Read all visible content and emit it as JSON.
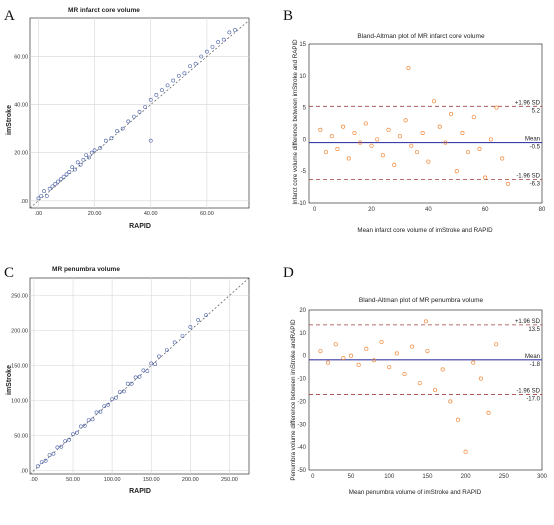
{
  "figure": {
    "panels": [
      {
        "letter": "A",
        "title": "MR infarct core volume",
        "xlabel": "RAPID",
        "ylabel": "imStroke"
      },
      {
        "letter": "B",
        "title": "Bland-Altman plot of MR infarct core volume",
        "xlabel": "Mean infarct core volume of imStroke and RAPID",
        "ylabel": "Infarct core volume difference between imStroke and RAPID"
      },
      {
        "letter": "C",
        "title": "MR penumbra volume",
        "xlabel": "RAPID",
        "ylabel": "imStroke"
      },
      {
        "letter": "D",
        "title": "Bland-Altman plot of MR penumbra volume",
        "xlabel": "Mean penumbra volume of imStroke and RAPID",
        "ylabel": "Penumbra volume difference between imStroke andRAPID"
      }
    ]
  },
  "colors": {
    "scatter_point": "#4a5fa8",
    "ba_point": "#f08a3c",
    "mean_line": "#3c3ca8",
    "limit_line": "#a04040",
    "grid": "#d6d6d6"
  },
  "chart_data": [
    {
      "type": "scatter",
      "title": "MR infarct core volume",
      "xlabel": "RAPID",
      "ylabel": "imStroke",
      "xlim": [
        -3,
        75
      ],
      "ylim": [
        -3,
        76
      ],
      "x_ticks": [
        ".00",
        "20.00",
        "40.00",
        "60.00"
      ],
      "y_ticks": [
        ".00",
        "20.00",
        "40.00",
        "60.00"
      ],
      "grid": true,
      "identity_line": true,
      "series": [
        {
          "points": [
            [
              0,
              1
            ],
            [
              1,
              2
            ],
            [
              2,
              4
            ],
            [
              3,
              2
            ],
            [
              4,
              5
            ],
            [
              5,
              6
            ],
            [
              6,
              7
            ],
            [
              7,
              8
            ],
            [
              8,
              9
            ],
            [
              9,
              10
            ],
            [
              10,
              11
            ],
            [
              11,
              12
            ],
            [
              12,
              14
            ],
            [
              13,
              13
            ],
            [
              14,
              16
            ],
            [
              15,
              15
            ],
            [
              16,
              17
            ],
            [
              17,
              19
            ],
            [
              18,
              18
            ],
            [
              19,
              20
            ],
            [
              20,
              21
            ],
            [
              22,
              22
            ],
            [
              24,
              25
            ],
            [
              26,
              26
            ],
            [
              28,
              29
            ],
            [
              30,
              30
            ],
            [
              32,
              33
            ],
            [
              34,
              35
            ],
            [
              36,
              37
            ],
            [
              38,
              39
            ],
            [
              40,
              25
            ],
            [
              40,
              42
            ],
            [
              42,
              44
            ],
            [
              44,
              46
            ],
            [
              46,
              48
            ],
            [
              48,
              50
            ],
            [
              50,
              52
            ],
            [
              52,
              53
            ],
            [
              54,
              56
            ],
            [
              56,
              57
            ],
            [
              58,
              60
            ],
            [
              60,
              62
            ],
            [
              62,
              64
            ],
            [
              64,
              66
            ],
            [
              66,
              67
            ],
            [
              68,
              70
            ],
            [
              70,
              71
            ]
          ]
        }
      ]
    },
    {
      "type": "scatter",
      "title": "Bland-Altman plot of MR infarct core volume",
      "xlabel": "Mean infarct core volume of imStroke and RAPID",
      "ylabel": "Infarct core volume difference between imStroke and RAPID",
      "xlim": [
        -2,
        80
      ],
      "ylim": [
        -10,
        15
      ],
      "x_ticks": [
        0,
        20,
        40,
        60,
        80
      ],
      "y_ticks": [
        -10,
        -5,
        0,
        5,
        10,
        15
      ],
      "mean": -0.5,
      "upper_loa": 5.2,
      "lower_loa": -6.3,
      "mean_label": "Mean",
      "upper_label": "+1.96 SD",
      "lower_label": "-1.96 SD",
      "mean_value_label": "-0.5",
      "upper_value_label": "5.2",
      "lower_value_label": "-6.3",
      "series": [
        {
          "points": [
            [
              2,
              1.5
            ],
            [
              4,
              -2
            ],
            [
              6,
              0.5
            ],
            [
              8,
              -1.5
            ],
            [
              10,
              2
            ],
            [
              12,
              -3
            ],
            [
              14,
              1
            ],
            [
              16,
              -0.5
            ],
            [
              18,
              2.5
            ],
            [
              20,
              -1
            ],
            [
              22,
              0
            ],
            [
              24,
              -2.5
            ],
            [
              26,
              1.5
            ],
            [
              28,
              -4
            ],
            [
              30,
              0.5
            ],
            [
              32,
              3
            ],
            [
              34,
              -1
            ],
            [
              36,
              -2
            ],
            [
              38,
              1
            ],
            [
              40,
              -3.5
            ],
            [
              42,
              6
            ],
            [
              44,
              2
            ],
            [
              46,
              -0.5
            ],
            [
              48,
              4
            ],
            [
              50,
              -5
            ],
            [
              52,
              1
            ],
            [
              54,
              -2
            ],
            [
              56,
              3.5
            ],
            [
              58,
              -1.5
            ],
            [
              60,
              -6
            ],
            [
              62,
              0
            ],
            [
              64,
              5
            ],
            [
              66,
              -3
            ],
            [
              68,
              -7
            ],
            [
              33,
              11.2
            ]
          ]
        }
      ]
    },
    {
      "type": "scatter",
      "title": "MR penumbra volume",
      "xlabel": "RAPID",
      "ylabel": "imStroke",
      "xlim": [
        -5,
        275
      ],
      "ylim": [
        -5,
        275
      ],
      "x_ticks": [
        ".00",
        "50.00",
        "100.00",
        "150.00",
        "200.00",
        "250.00"
      ],
      "y_ticks": [
        ".00",
        "50.00",
        "100.00",
        "150.00",
        "200.00",
        "250.00"
      ],
      "grid": true,
      "identity_line": true,
      "series": [
        {
          "points": [
            [
              5,
              6
            ],
            [
              10,
              12
            ],
            [
              15,
              14
            ],
            [
              20,
              22
            ],
            [
              25,
              24
            ],
            [
              30,
              33
            ],
            [
              35,
              34
            ],
            [
              40,
              42
            ],
            [
              45,
              44
            ],
            [
              50,
              52
            ],
            [
              55,
              54
            ],
            [
              60,
              63
            ],
            [
              65,
              64
            ],
            [
              70,
              72
            ],
            [
              75,
              73
            ],
            [
              80,
              83
            ],
            [
              85,
              84
            ],
            [
              90,
              92
            ],
            [
              95,
              94
            ],
            [
              100,
              102
            ],
            [
              105,
              104
            ],
            [
              110,
              112
            ],
            [
              115,
              113
            ],
            [
              120,
              124
            ],
            [
              125,
              124
            ],
            [
              130,
              133
            ],
            [
              135,
              134
            ],
            [
              140,
              143
            ],
            [
              145,
              142
            ],
            [
              150,
              153
            ],
            [
              155,
              152
            ],
            [
              160,
              163
            ],
            [
              170,
              172
            ],
            [
              180,
              183
            ],
            [
              190,
              192
            ],
            [
              200,
              205
            ],
            [
              210,
              215
            ],
            [
              220,
              222
            ]
          ]
        }
      ]
    },
    {
      "type": "scatter",
      "title": "Bland-Altman plot of MR penumbra volume",
      "xlabel": "Mean penumbra volume of imStroke and RAPID",
      "ylabel": "Penumbra volume difference between imStroke andRAPID",
      "xlim": [
        -5,
        300
      ],
      "ylim": [
        -50,
        20
      ],
      "x_ticks": [
        0,
        50,
        100,
        150,
        200,
        250,
        300
      ],
      "y_ticks": [
        -50,
        -40,
        -30,
        -20,
        -10,
        0,
        10,
        20
      ],
      "mean": -1.8,
      "upper_loa": 13.5,
      "lower_loa": -17.0,
      "mean_label": "Mean",
      "upper_label": "+1.96 SD",
      "lower_label": "-1.96 SD",
      "mean_value_label": "-1.8",
      "upper_value_label": "13.5",
      "lower_value_label": "-17.0",
      "series": [
        {
          "points": [
            [
              10,
              2
            ],
            [
              20,
              -3
            ],
            [
              30,
              5
            ],
            [
              40,
              -1
            ],
            [
              50,
              0
            ],
            [
              60,
              -4
            ],
            [
              70,
              3
            ],
            [
              80,
              -2
            ],
            [
              90,
              6
            ],
            [
              100,
              -5
            ],
            [
              110,
              1
            ],
            [
              120,
              -8
            ],
            [
              130,
              4
            ],
            [
              140,
              -12
            ],
            [
              150,
              2
            ],
            [
              160,
              -15
            ],
            [
              170,
              -6
            ],
            [
              180,
              -20
            ],
            [
              190,
              -28
            ],
            [
              200,
              -42
            ],
            [
              210,
              -3
            ],
            [
              220,
              -10
            ],
            [
              230,
              -25
            ],
            [
              240,
              5
            ],
            [
              148,
              15
            ]
          ]
        }
      ]
    }
  ]
}
